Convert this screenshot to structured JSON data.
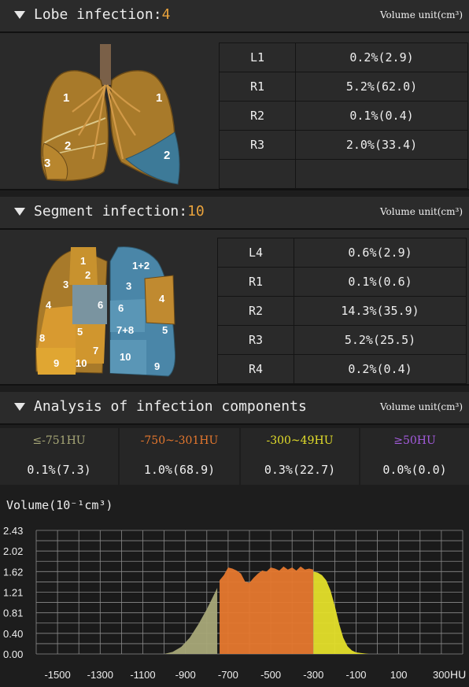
{
  "lobe": {
    "title": "Lobe infection:",
    "count": "4",
    "unit": "Volume unit(cm³)",
    "rows": [
      {
        "k": "L1",
        "v": "0.2%(2.9)"
      },
      {
        "k": "R1",
        "v": "5.2%(62.0)"
      },
      {
        "k": "R2",
        "v": "0.1%(0.4)"
      },
      {
        "k": "R3",
        "v": "2.0%(33.4)"
      },
      {
        "k": "",
        "v": ""
      }
    ],
    "labels": {
      "a": "1",
      "b": "2",
      "c": "3",
      "d": "1",
      "e": "2"
    }
  },
  "segment": {
    "title": "Segment infection:",
    "count": "10",
    "unit": "Volume unit(cm³)",
    "rows": [
      {
        "k": "L4",
        "v": "0.6%(2.9)"
      },
      {
        "k": "R1",
        "v": "0.1%(0.6)"
      },
      {
        "k": "R2",
        "v": "14.3%(35.9)"
      },
      {
        "k": "R3",
        "v": "5.2%(25.5)"
      },
      {
        "k": "R4",
        "v": "0.2%(0.4)"
      }
    ],
    "labels": [
      "1",
      "2",
      "3",
      "4",
      "5",
      "7",
      "8",
      "9",
      "10",
      "6",
      "1+2",
      "3",
      "6",
      "4",
      "7+8",
      "5",
      "10",
      "9"
    ]
  },
  "components": {
    "title": "Analysis of infection components",
    "unit": "Volume unit(cm³)",
    "items": [
      {
        "label": "≤-751HU",
        "value": "0.1%(7.3)",
        "color": "#a8a878"
      },
      {
        "label": "-750~-301HU",
        "value": "1.0%(68.9)",
        "color": "#e6782e"
      },
      {
        "label": "-300~49HU",
        "value": "0.3%(22.7)",
        "color": "#e4df2a"
      },
      {
        "label": "≥50HU",
        "value": "0.0%(0.0)",
        "color": "#a65ce0"
      }
    ]
  },
  "histogram": {
    "ylabel": "Volume(10⁻¹cm³)",
    "ytick_labels": [
      "2.43",
      "2.02",
      "1.62",
      "1.21",
      "0.81",
      "0.40",
      "0.00"
    ],
    "xtick_labels": [
      "-1500",
      "-1300",
      "-1100",
      "-900",
      "-700",
      "-500",
      "-300",
      "-100",
      "100",
      "300"
    ],
    "xunit": "HU"
  },
  "chart_data": {
    "type": "area",
    "ylabel": "Volume(10⁻¹cm³)",
    "xlabel": "HU",
    "xlim": [
      -1600,
      400
    ],
    "ylim": [
      0,
      2.43
    ],
    "x": [
      -1000,
      -960,
      -920,
      -880,
      -840,
      -800,
      -760,
      -751,
      -740,
      -720,
      -700,
      -680,
      -660,
      -640,
      -620,
      -600,
      -580,
      -560,
      -540,
      -520,
      -500,
      -480,
      -460,
      -440,
      -420,
      -400,
      -380,
      -360,
      -340,
      -320,
      -301,
      -300,
      -280,
      -260,
      -240,
      -220,
      -200,
      -180,
      -160,
      -140,
      -120,
      -100,
      -80,
      -60,
      -40
    ],
    "y": [
      0.0,
      0.04,
      0.14,
      0.32,
      0.58,
      0.88,
      1.22,
      1.3,
      1.45,
      1.55,
      1.7,
      1.68,
      1.64,
      1.58,
      1.42,
      1.4,
      1.5,
      1.58,
      1.64,
      1.62,
      1.7,
      1.68,
      1.64,
      1.72,
      1.66,
      1.7,
      1.64,
      1.72,
      1.66,
      1.68,
      1.66,
      1.62,
      1.6,
      1.55,
      1.45,
      1.25,
      0.95,
      0.6,
      0.32,
      0.15,
      0.07,
      0.03,
      0.02,
      0.01,
      0.0
    ],
    "series_colors": [
      {
        "range": [
          -1000,
          -751
        ],
        "color": "#a8a878"
      },
      {
        "range": [
          -750,
          -301
        ],
        "color": "#e6782e"
      },
      {
        "range": [
          -300,
          49
        ],
        "color": "#e4df2a"
      }
    ]
  }
}
